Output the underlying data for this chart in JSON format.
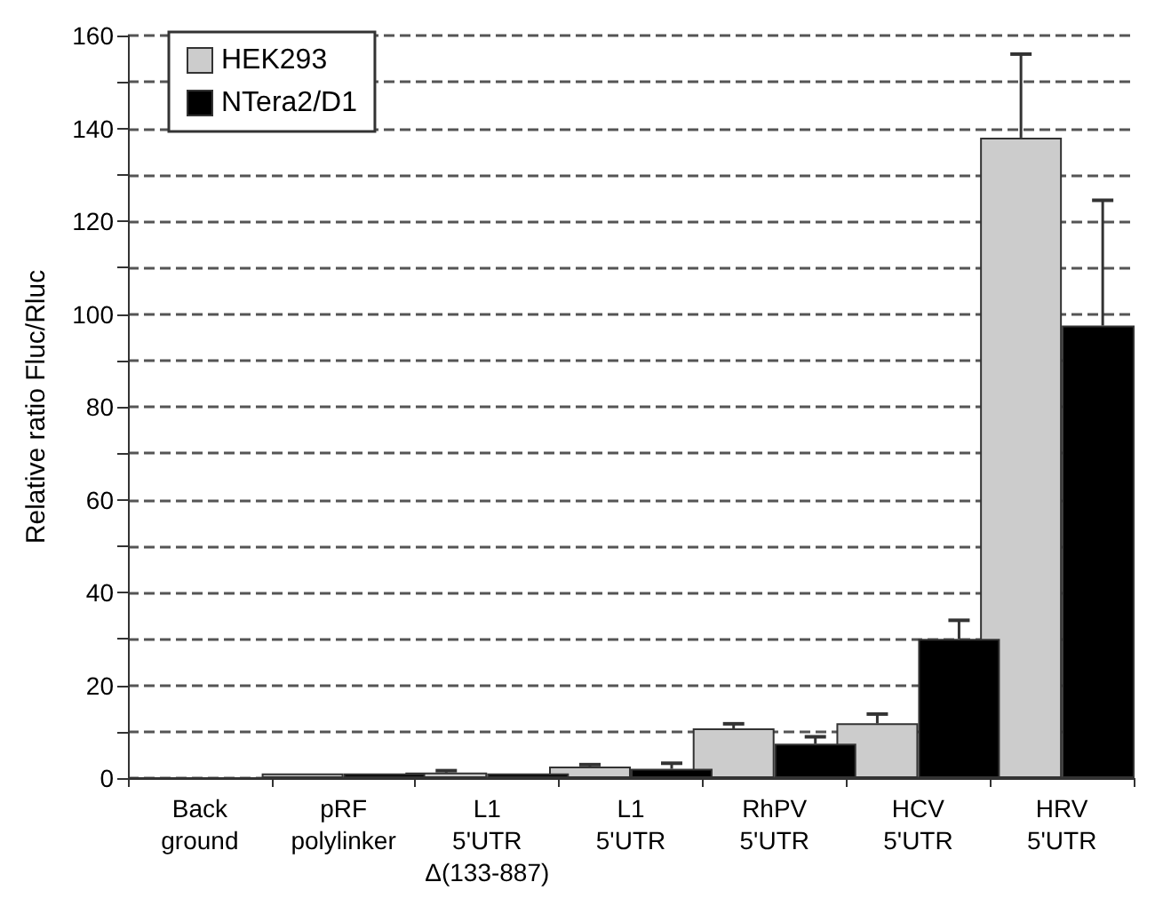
{
  "chart_data": {
    "type": "bar",
    "ylabel": "Relative ratio Fluc/Rluc",
    "categories": [
      "Back\nground",
      "pRF\npolylinker",
      "L1\n5'UTR\nΔ(133-887)",
      "L1\n5'UTR",
      "RhPV\n5'UTR",
      "HCV\n5'UTR",
      "HRV\n5'UTR"
    ],
    "series": [
      {
        "name": "HEK293",
        "color": "#cccccc",
        "values": [
          0,
          1,
          1.2,
          2.5,
          10.7,
          11.8,
          138
        ],
        "errors": [
          null,
          null,
          0.4,
          0.4,
          1,
          2,
          18
        ]
      },
      {
        "name": "NTera2/D1",
        "color": "#000000",
        "values": [
          0,
          1,
          1,
          2,
          7.4,
          30,
          97.5
        ],
        "errors": [
          null,
          null,
          null,
          1.2,
          1.5,
          4,
          27
        ]
      }
    ],
    "ylim": [
      0,
      160
    ],
    "yticks": [
      0,
      {
        "value": 10,
        "label": null
      },
      20,
      {
        "value": 30,
        "label": null
      },
      40,
      {
        "value": 50,
        "label": null
      },
      60,
      {
        "value": 70,
        "label": null
      },
      80,
      {
        "value": 90,
        "label": null
      },
      100,
      {
        "value": 110,
        "label": null
      },
      120,
      {
        "value": 130,
        "label": null
      },
      140,
      {
        "value": 150,
        "label": null
      },
      160
    ],
    "grid": "y",
    "line_style": "dashed",
    "legend": "top left"
  }
}
